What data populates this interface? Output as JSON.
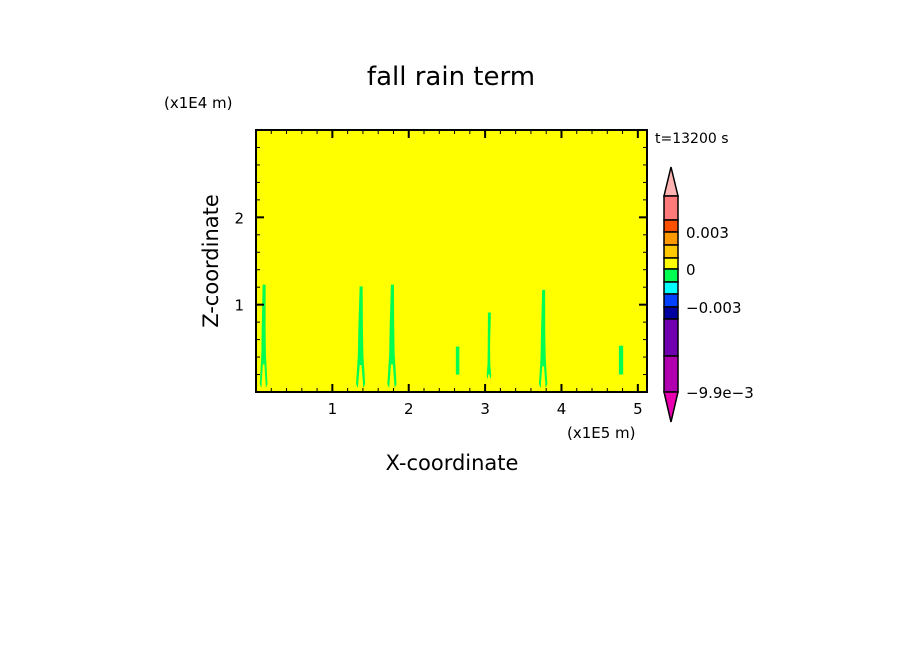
{
  "chart_data": {
    "type": "heatmap",
    "title": "fall rain term",
    "xlabel": "X-coordinate",
    "ylabel": "Z-coordinate",
    "x_unit": "(x1E5 m)",
    "y_unit": "(x1E4 m)",
    "time_label": "t=13200 s",
    "xlim": [
      0,
      5.12
    ],
    "ylim": [
      0,
      3.0
    ],
    "x_ticks": [
      1,
      2,
      3,
      4,
      5
    ],
    "x_tick_labels": [
      "1",
      "2",
      "3",
      "4",
      "5"
    ],
    "y_ticks": [
      1,
      2
    ],
    "y_tick_labels": [
      "1",
      "2"
    ],
    "minor_tick_step": 0.2,
    "grid": false,
    "background_color": "#ffff00",
    "feature_color": "#00ff50",
    "features": [
      {
        "x": 0.1,
        "z_top": 1.23,
        "z_bottom": 0.0,
        "width": 0.1
      },
      {
        "x": 1.37,
        "z_top": 1.21,
        "z_bottom": 0.0,
        "width": 0.12
      },
      {
        "x": 1.78,
        "z_top": 1.23,
        "z_bottom": 0.0,
        "width": 0.12
      },
      {
        "x": 2.64,
        "z_top": 0.52,
        "z_bottom": 0.2,
        "width": 0.02
      },
      {
        "x": 3.05,
        "z_top": 0.91,
        "z_bottom": 0.1,
        "width": 0.06
      },
      {
        "x": 3.76,
        "z_top": 1.17,
        "z_bottom": 0.0,
        "width": 0.11
      },
      {
        "x": 4.78,
        "z_top": 0.53,
        "z_bottom": 0.2,
        "width": 0.03
      }
    ],
    "colorbar": {
      "top_extend_color": "#ffb4b4",
      "bottom_extend_color": "#e800b0",
      "segments": [
        {
          "from": 0.006,
          "to": 0.004,
          "color": "#ff7a7a"
        },
        {
          "from": 0.004,
          "to": 0.003,
          "color": "#ff5000"
        },
        {
          "from": 0.003,
          "to": 0.002,
          "color": "#ff9900"
        },
        {
          "from": 0.002,
          "to": 0.001,
          "color": "#ffc800"
        },
        {
          "from": 0.001,
          "to": 0.0,
          "color": "#ffff00"
        },
        {
          "from": 0.0,
          "to": -0.001,
          "color": "#00ff50"
        },
        {
          "from": -0.001,
          "to": -0.002,
          "color": "#00ffff"
        },
        {
          "from": -0.002,
          "to": -0.003,
          "color": "#0040ff"
        },
        {
          "from": -0.003,
          "to": -0.004,
          "color": "#0000a0"
        },
        {
          "from": -0.004,
          "to": -0.007,
          "color": "#7000b0"
        },
        {
          "from": -0.007,
          "to": -0.0099,
          "color": "#b000b0"
        }
      ],
      "tick_values": [
        0.003,
        0,
        -0.003,
        -0.0099
      ],
      "tick_labels": [
        "0.003",
        "0",
        "−0.003",
        "−9.9e−3"
      ]
    }
  }
}
